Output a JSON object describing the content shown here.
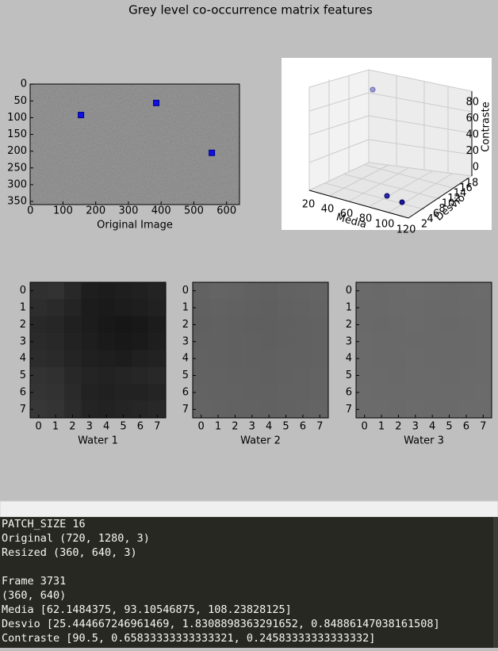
{
  "window": {
    "title": "Grey level co-occurrence matrix features"
  },
  "image_plot": {
    "xlabel": "Original Image",
    "xticks": [
      0,
      100,
      200,
      300,
      400,
      500,
      600
    ],
    "yticks": [
      0,
      50,
      100,
      150,
      200,
      250,
      300,
      350
    ],
    "markers": [
      [
        155,
        92
      ],
      [
        385,
        56
      ],
      [
        555,
        205
      ]
    ]
  },
  "plot3d": {
    "xlabel": "Media",
    "ylabel": "Desvio",
    "zlabel": "Contraste",
    "xticks": [
      20,
      40,
      60,
      80,
      100,
      120
    ],
    "yticks": [
      2,
      4,
      6,
      8,
      10,
      12,
      14,
      16,
      18
    ],
    "zticks": [
      0,
      20,
      40,
      60,
      80
    ]
  },
  "patch_ticks": [
    0,
    1,
    2,
    3,
    4,
    5,
    6,
    7
  ],
  "patches": [
    {
      "label": "Water 1",
      "gray": [
        [
          48,
          50,
          40,
          30,
          28,
          30,
          32,
          35
        ],
        [
          45,
          42,
          36,
          28,
          26,
          28,
          30,
          33
        ],
        [
          40,
          38,
          32,
          28,
          24,
          22,
          24,
          28
        ],
        [
          42,
          40,
          34,
          30,
          26,
          24,
          26,
          30
        ],
        [
          44,
          42,
          36,
          32,
          30,
          28,
          32,
          34
        ],
        [
          50,
          48,
          40,
          36,
          34,
          36,
          38,
          40
        ],
        [
          52,
          50,
          42,
          34,
          32,
          34,
          34,
          36
        ],
        [
          55,
          52,
          44,
          36,
          34,
          36,
          38,
          40
        ]
      ]
    },
    {
      "label": "Water 2",
      "gray": [
        [
          98,
          100,
          99,
          97,
          96,
          98,
          99,
          100
        ],
        [
          97,
          98,
          97,
          96,
          95,
          97,
          98,
          99
        ],
        [
          96,
          97,
          96,
          95,
          95,
          96,
          97,
          98
        ],
        [
          97,
          97,
          96,
          96,
          95,
          96,
          97,
          98
        ],
        [
          98,
          97,
          96,
          96,
          96,
          97,
          97,
          98
        ],
        [
          98,
          98,
          97,
          97,
          96,
          97,
          98,
          99
        ],
        [
          99,
          98,
          98,
          97,
          97,
          98,
          98,
          99
        ],
        [
          100,
          99,
          98,
          98,
          97,
          98,
          99,
          100
        ]
      ]
    },
    {
      "label": "Water 3",
      "gray": [
        [
          106,
          105,
          106,
          107,
          106,
          105,
          106,
          107
        ],
        [
          105,
          105,
          106,
          106,
          105,
          105,
          106,
          106
        ],
        [
          105,
          104,
          105,
          106,
          105,
          104,
          105,
          106
        ],
        [
          106,
          105,
          105,
          105,
          105,
          105,
          105,
          106
        ],
        [
          106,
          105,
          105,
          106,
          105,
          105,
          105,
          106
        ],
        [
          106,
          106,
          105,
          106,
          106,
          105,
          106,
          106
        ],
        [
          107,
          106,
          106,
          106,
          106,
          106,
          106,
          107
        ],
        [
          107,
          107,
          106,
          107,
          106,
          106,
          107,
          107
        ]
      ]
    }
  ],
  "terminal": {
    "block1": [
      "PATCH_SIZE 16",
      "Original (720, 1280, 3)",
      "Resized (360, 640, 3)"
    ],
    "block2": [
      "Frame 3731",
      "(360, 640)",
      "Media [62.1484375, 93.10546875, 108.23828125]",
      "Desvio [25.444667246961469, 1.8308898363291652, 0.84886147038161508]",
      "Contraste [90.5, 0.65833333333333321, 0.24583333333333332]"
    ]
  }
}
